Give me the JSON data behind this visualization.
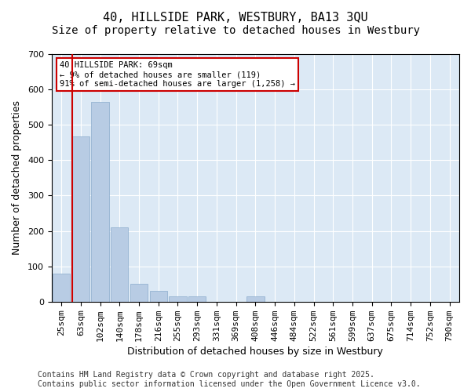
{
  "title": "40, HILLSIDE PARK, WESTBURY, BA13 3QU",
  "subtitle": "Size of property relative to detached houses in Westbury",
  "xlabel": "Distribution of detached houses by size in Westbury",
  "ylabel": "Number of detached properties",
  "categories": [
    "25sqm",
    "63sqm",
    "102sqm",
    "140sqm",
    "178sqm",
    "216sqm",
    "255sqm",
    "293sqm",
    "331sqm",
    "369sqm",
    "408sqm",
    "446sqm",
    "484sqm",
    "522sqm",
    "561sqm",
    "599sqm",
    "637sqm",
    "675sqm",
    "714sqm",
    "752sqm",
    "790sqm"
  ],
  "values": [
    80,
    468,
    565,
    210,
    50,
    30,
    15,
    15,
    0,
    0,
    15,
    0,
    0,
    0,
    0,
    0,
    0,
    0,
    0,
    0,
    0
  ],
  "bar_color": "#b8cce4",
  "bar_edge_color": "#8aabcc",
  "vline_x": 1,
  "vline_color": "#cc0000",
  "ylim": [
    0,
    700
  ],
  "yticks": [
    0,
    100,
    200,
    300,
    400,
    500,
    600,
    700
  ],
  "annotation_text": "40 HILLSIDE PARK: 69sqm\n← 9% of detached houses are smaller (119)\n91% of semi-detached houses are larger (1,258) →",
  "annotation_box_color": "#ffffff",
  "annotation_border_color": "#cc0000",
  "footer": "Contains HM Land Registry data © Crown copyright and database right 2025.\nContains public sector information licensed under the Open Government Licence v3.0.",
  "background_color": "#dce9f5",
  "plot_bg_color": "#dce9f5",
  "fig_bg_color": "#ffffff",
  "title_fontsize": 11,
  "subtitle_fontsize": 10,
  "xlabel_fontsize": 9,
  "ylabel_fontsize": 9,
  "tick_fontsize": 8,
  "footer_fontsize": 7
}
